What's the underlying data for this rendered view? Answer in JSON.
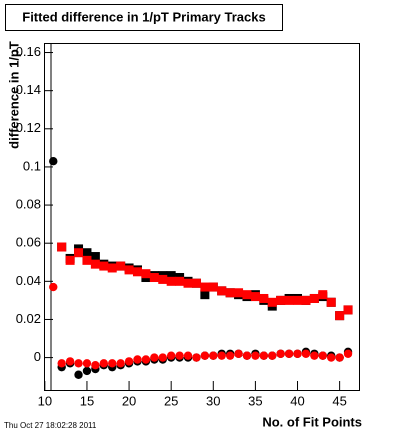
{
  "chart_data": {
    "type": "scatter",
    "title": "Fitted difference in 1/pT Primary Tracks",
    "x_label": "No. of Fit Points",
    "y_label": "difference in 1/pT",
    "footer": "Thu Oct 27 18:02:28 2011",
    "xlim": [
      9.9,
      47.3
    ],
    "ylim": [
      -0.017,
      0.165
    ],
    "xticks": [
      10,
      15,
      20,
      25,
      30,
      35,
      40,
      45
    ],
    "yticks": [
      0,
      0.02,
      0.04,
      0.06,
      0.08,
      0.1,
      0.12,
      0.14,
      0.16
    ],
    "x": [
      11,
      12,
      13,
      14,
      15,
      16,
      17,
      18,
      19,
      20,
      21,
      22,
      23,
      24,
      25,
      26,
      27,
      28,
      29,
      30,
      31,
      32,
      33,
      34,
      35,
      36,
      37,
      38,
      39,
      40,
      41,
      42,
      43,
      44,
      45,
      46
    ],
    "series": [
      {
        "marker": "square",
        "color": "#000000",
        "values": [
          null,
          0.058,
          0.052,
          0.057,
          0.055,
          0.053,
          0.049,
          0.048,
          0.048,
          0.047,
          0.046,
          0.042,
          0.043,
          0.043,
          0.043,
          0.042,
          0.04,
          0.039,
          0.033,
          0.037,
          0.035,
          0.034,
          0.033,
          0.032,
          0.033,
          0.03,
          0.027,
          0.03,
          0.031,
          0.031,
          0.03,
          0.031,
          0.032,
          0.029,
          0.022,
          0.025
        ]
      },
      {
        "marker": "square",
        "color": "#ff0000",
        "values": [
          null,
          0.058,
          0.051,
          0.055,
          0.051,
          0.049,
          0.048,
          0.047,
          0.048,
          0.046,
          0.045,
          0.044,
          0.042,
          0.041,
          0.04,
          0.04,
          0.039,
          0.039,
          0.037,
          0.037,
          0.035,
          0.034,
          0.034,
          0.033,
          0.032,
          0.031,
          0.029,
          0.03,
          0.03,
          0.03,
          0.03,
          0.031,
          0.033,
          0.029,
          0.022,
          0.025
        ]
      },
      {
        "marker": "circle",
        "color": "#000000",
        "values": [
          0.103,
          -0.005,
          -0.003,
          -0.009,
          -0.007,
          -0.006,
          -0.004,
          -0.005,
          -0.004,
          -0.003,
          -0.002,
          -0.002,
          -0.001,
          -0.001,
          0,
          0,
          0,
          0,
          0.001,
          0.001,
          0.002,
          0.002,
          0.002,
          0.001,
          0.002,
          0.001,
          0.001,
          0.002,
          0.002,
          0.002,
          0.003,
          0.002,
          0.001,
          0.001,
          0,
          0.003
        ]
      },
      {
        "marker": "circle",
        "color": "#ff0000",
        "values": [
          0.037,
          -0.003,
          -0.002,
          -0.003,
          -0.003,
          -0.004,
          -0.003,
          -0.003,
          -0.003,
          -0.002,
          -0.001,
          -0.001,
          0,
          0,
          0.001,
          0.001,
          0.001,
          0,
          0.001,
          0.001,
          0.001,
          0.001,
          0.002,
          0.001,
          0.001,
          0.001,
          0.001,
          0.002,
          0.002,
          0.002,
          0.002,
          0.001,
          0.001,
          0,
          0,
          0.002
        ]
      }
    ]
  }
}
